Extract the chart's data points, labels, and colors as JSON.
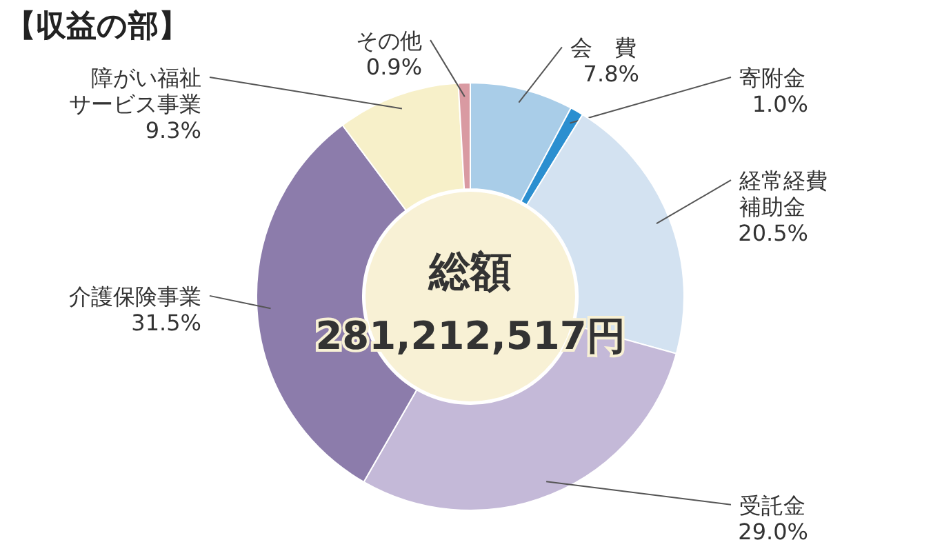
{
  "chart_data": {
    "type": "donut",
    "title": "【収益の部】",
    "categories": [
      "会　費",
      "寄附金",
      "経常経費補助金",
      "受託金",
      "介護保険事業",
      "障がい福祉サービス事業",
      "その他"
    ],
    "values": [
      7.8,
      1.0,
      20.5,
      29.0,
      31.5,
      9.3,
      0.9
    ],
    "value_labels": [
      "7.8%",
      "1.0%",
      "20.5%",
      "29.0%",
      "31.5%",
      "9.3%",
      "0.9%"
    ],
    "colors": [
      "#a9cde8",
      "#2b8fd0",
      "#d3e2f1",
      "#c4b9d8",
      "#8c7cab",
      "#f7f0c9",
      "#d99aa2"
    ],
    "annotations": [
      "総額",
      "281,212,517円"
    ]
  }
}
